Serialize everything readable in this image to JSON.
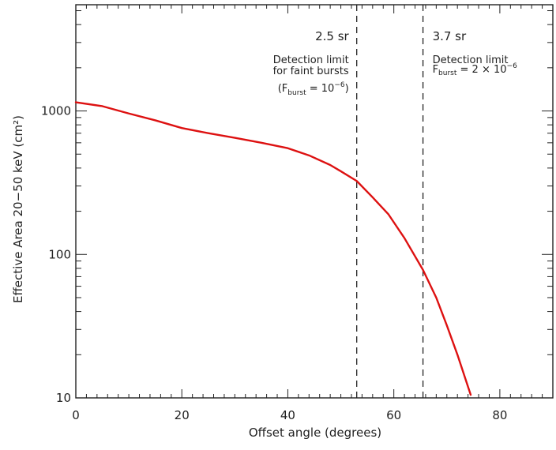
{
  "chart_data": {
    "type": "line",
    "xlabel": "Offset angle (degrees)",
    "ylabel": "Effective Area 20−50 keV (cm²)",
    "xlim": [
      0,
      90
    ],
    "ylim": [
      10,
      5500
    ],
    "yscale": "log",
    "x_ticks": [
      0,
      20,
      40,
      60,
      80
    ],
    "x_tick_labels": [
      "0",
      "20",
      "40",
      "60",
      "80"
    ],
    "y_ticks": [
      10,
      100,
      1000
    ],
    "y_tick_labels": [
      "10",
      "100",
      "1000"
    ],
    "series": [
      {
        "color": "#dd1111",
        "x": [
          0,
          5,
          10,
          15,
          20,
          25,
          30,
          35,
          40,
          44,
          48,
          50,
          53,
          56,
          59,
          62,
          65.5,
          68,
          70,
          72,
          74.5
        ],
        "y": [
          1150,
          1080,
          960,
          860,
          760,
          700,
          650,
          600,
          550,
          490,
          420,
          380,
          325,
          250,
          190,
          130,
          78,
          50,
          32,
          20,
          10.5
        ]
      }
    ],
    "vlines": [
      {
        "x": 53,
        "label": "2.5 sr",
        "note_line1": "Detection limit",
        "note_line2": "for faint bursts",
        "note_line3_prefix": "(F",
        "note_line3_sub": "burst",
        "note_line3_mid": " = 10",
        "note_line3_sup": "−6",
        "note_line3_suffix": ")"
      },
      {
        "x": 65.5,
        "label": "3.7 sr",
        "note_line1": "Detection limit",
        "note_line2_prefix": "F",
        "note_line2_sub": "burst",
        "note_line2_mid": " = 2 × 10",
        "note_line2_sup": "−6"
      }
    ],
    "grid": false,
    "legend": "none"
  }
}
